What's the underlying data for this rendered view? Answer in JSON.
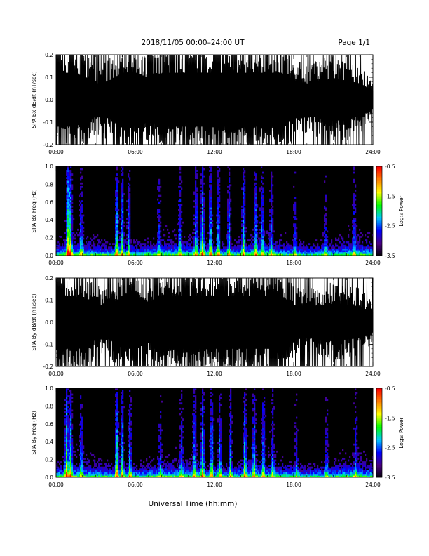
{
  "header": {
    "title": "2018/11/05  00:00–24:00 UT",
    "page_label": "Page 1/1"
  },
  "footer": {
    "xlabel": "Universal Time (hh:mm)"
  },
  "colors": {
    "trace": "#000000",
    "background": "#ffffff",
    "colormap": [
      "#000000",
      "#4b0082",
      "#0000ff",
      "#00c8ff",
      "#00ff00",
      "#ffff00",
      "#ff8000",
      "#ff0000"
    ]
  },
  "chart_data": [
    {
      "type": "line",
      "ylabel": "SPA Bx dB/dt (nT/sec)",
      "xlim": [
        0,
        24
      ],
      "ylim": [
        -0.2,
        0.2
      ],
      "x_tick_labels": [
        "00:00",
        "06:00",
        "12:00",
        "18:00",
        "24:00"
      ],
      "y_ticks": [
        -0.2,
        -0.1,
        0.0,
        0.1,
        0.2
      ],
      "y_tick_labels": [
        "-0.2",
        "-0.1",
        "0.0",
        "0.1",
        "0.2"
      ],
      "series": [
        {
          "x": [
            0,
            1,
            2,
            3,
            4,
            5,
            6,
            7,
            8,
            9,
            10,
            11,
            12,
            13,
            14,
            15,
            16,
            17,
            18,
            19,
            20,
            21,
            22,
            23,
            24
          ],
          "amplitude": [
            0.2,
            0.2,
            0.18,
            0.12,
            0.14,
            0.2,
            0.2,
            0.16,
            0.2,
            0.2,
            0.2,
            0.2,
            0.2,
            0.2,
            0.2,
            0.2,
            0.2,
            0.2,
            0.14,
            0.12,
            0.14,
            0.16,
            0.14,
            0.12,
            0.06
          ]
        }
      ]
    },
    {
      "type": "heatmap",
      "ylabel": "SPA Bx Freq (Hz)",
      "xlim": [
        0,
        24
      ],
      "ylim": [
        0.0,
        1.0
      ],
      "x_tick_labels": [
        "00:00",
        "06:00",
        "12:00",
        "18:00",
        "24:00"
      ],
      "y_ticks": [
        0.0,
        0.2,
        0.4,
        0.6,
        0.8,
        1.0
      ],
      "y_tick_labels": [
        "0.0",
        "0.2",
        "0.4",
        "0.6",
        "0.8",
        "1.0"
      ],
      "colorbar": {
        "label": "Log₁₀ Power",
        "range": [
          -3.5,
          -0.5
        ],
        "ticks": [
          -0.5,
          -1.5,
          -2.5,
          -3.5
        ],
        "tick_labels": [
          "-0.5",
          "-1.5",
          "-2.5",
          "-3.5"
        ]
      },
      "bursts": [
        {
          "t": 0.9,
          "strength": 1.0
        },
        {
          "t": 1.1,
          "strength": 0.9
        },
        {
          "t": 1.9,
          "strength": 0.5
        },
        {
          "t": 4.6,
          "strength": 0.8
        },
        {
          "t": 5.0,
          "strength": 0.9
        },
        {
          "t": 5.5,
          "strength": 0.7
        },
        {
          "t": 7.8,
          "strength": 0.4
        },
        {
          "t": 9.4,
          "strength": 0.5
        },
        {
          "t": 10.6,
          "strength": 0.7
        },
        {
          "t": 11.1,
          "strength": 0.9
        },
        {
          "t": 11.7,
          "strength": 0.8
        },
        {
          "t": 12.3,
          "strength": 0.7
        },
        {
          "t": 13.1,
          "strength": 0.7
        },
        {
          "t": 14.2,
          "strength": 0.8
        },
        {
          "t": 15.1,
          "strength": 0.7
        },
        {
          "t": 15.6,
          "strength": 0.6
        },
        {
          "t": 16.3,
          "strength": 0.5
        },
        {
          "t": 18.1,
          "strength": 0.4
        },
        {
          "t": 20.4,
          "strength": 0.4
        },
        {
          "t": 22.6,
          "strength": 0.4
        }
      ]
    },
    {
      "type": "line",
      "ylabel": "SPA By dB/dt (nT/sec)",
      "xlim": [
        0,
        24
      ],
      "ylim": [
        -0.2,
        0.2
      ],
      "x_tick_labels": [
        "00:00",
        "06:00",
        "12:00",
        "18:00",
        "24:00"
      ],
      "y_ticks": [
        -0.2,
        -0.1,
        0.0,
        0.1,
        0.2
      ],
      "y_tick_labels": [
        "-0.2",
        "-0.1",
        "0.0",
        "0.1",
        "0.2"
      ],
      "series": [
        {
          "x": [
            0,
            1,
            2,
            3,
            4,
            5,
            6,
            7,
            8,
            9,
            10,
            11,
            12,
            13,
            14,
            15,
            16,
            17,
            18,
            19,
            20,
            21,
            22,
            23,
            24
          ],
          "amplitude": [
            0.2,
            0.2,
            0.18,
            0.13,
            0.13,
            0.2,
            0.2,
            0.15,
            0.2,
            0.2,
            0.2,
            0.2,
            0.2,
            0.2,
            0.2,
            0.2,
            0.2,
            0.2,
            0.13,
            0.12,
            0.13,
            0.14,
            0.13,
            0.12,
            0.07
          ]
        }
      ]
    },
    {
      "type": "heatmap",
      "ylabel": "SPA By Freq (Hz)",
      "xlim": [
        0,
        24
      ],
      "ylim": [
        0.0,
        1.0
      ],
      "x_tick_labels": [
        "00:00",
        "06:00",
        "12:00",
        "18:00",
        "24:00"
      ],
      "y_ticks": [
        0.0,
        0.2,
        0.4,
        0.6,
        0.8,
        1.0
      ],
      "y_tick_labels": [
        "0.0",
        "0.2",
        "0.4",
        "0.6",
        "0.8",
        "1.0"
      ],
      "colorbar": {
        "label": "Log₁₀ Power",
        "range": [
          -3.5,
          -0.5
        ],
        "ticks": [
          -0.5,
          -1.5,
          -2.5,
          -3.5
        ],
        "tick_labels": [
          "-0.5",
          "-1.5",
          "-2.5",
          "-3.5"
        ]
      },
      "bursts": [
        {
          "t": 0.8,
          "strength": 1.0
        },
        {
          "t": 1.1,
          "strength": 0.9
        },
        {
          "t": 1.9,
          "strength": 0.5
        },
        {
          "t": 4.6,
          "strength": 0.9
        },
        {
          "t": 5.0,
          "strength": 0.9
        },
        {
          "t": 5.6,
          "strength": 0.7
        },
        {
          "t": 7.9,
          "strength": 0.4
        },
        {
          "t": 9.5,
          "strength": 0.5
        },
        {
          "t": 10.5,
          "strength": 0.7
        },
        {
          "t": 11.1,
          "strength": 0.9
        },
        {
          "t": 11.8,
          "strength": 0.8
        },
        {
          "t": 12.4,
          "strength": 0.7
        },
        {
          "t": 13.2,
          "strength": 0.7
        },
        {
          "t": 14.3,
          "strength": 0.8
        },
        {
          "t": 15.0,
          "strength": 0.7
        },
        {
          "t": 15.7,
          "strength": 0.6
        },
        {
          "t": 16.4,
          "strength": 0.5
        },
        {
          "t": 18.2,
          "strength": 0.4
        },
        {
          "t": 20.5,
          "strength": 0.4
        },
        {
          "t": 22.7,
          "strength": 0.4
        }
      ]
    }
  ]
}
